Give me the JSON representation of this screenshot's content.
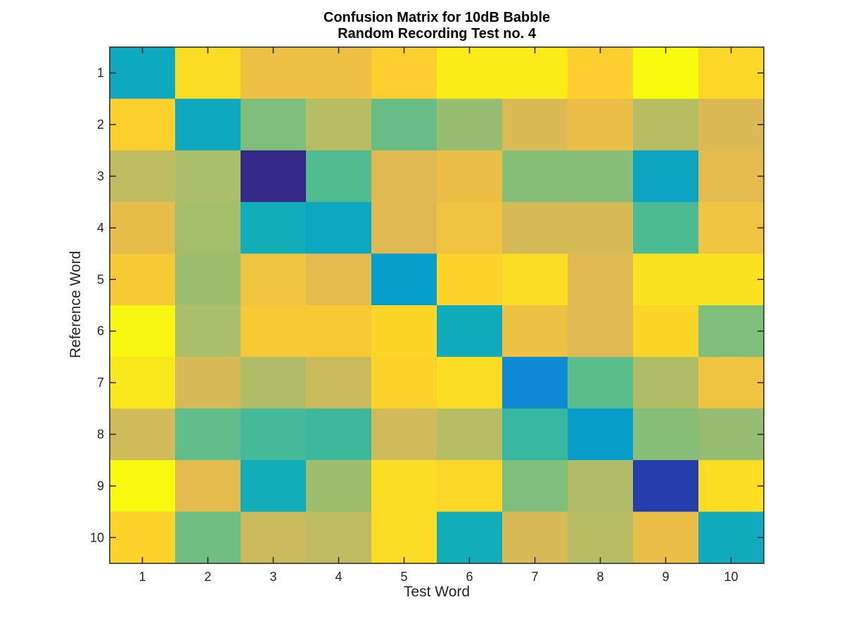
{
  "chart_data": {
    "type": "heatmap",
    "title": [
      "Confusion Matrix for 10dB Babble",
      "Random Recording Test no. 4"
    ],
    "xlabel": "Test Word",
    "ylabel": "Reference Word",
    "x_ticks": [
      "1",
      "2",
      "3",
      "4",
      "5",
      "6",
      "7",
      "8",
      "9",
      "10"
    ],
    "y_ticks": [
      "1",
      "2",
      "3",
      "4",
      "5",
      "6",
      "7",
      "8",
      "9",
      "10"
    ],
    "colormap": "parula",
    "color_range": [
      0,
      1
    ],
    "values": [
      [
        0.36,
        0.86,
        0.74,
        0.74,
        0.8,
        0.93,
        0.93,
        0.8,
        1.0,
        0.84
      ],
      [
        0.81,
        0.36,
        0.55,
        0.63,
        0.52,
        0.58,
        0.69,
        0.73,
        0.63,
        0.69
      ],
      [
        0.64,
        0.61,
        0.0,
        0.49,
        0.7,
        0.73,
        0.56,
        0.56,
        0.34,
        0.71
      ],
      [
        0.72,
        0.6,
        0.38,
        0.35,
        0.7,
        0.75,
        0.68,
        0.68,
        0.48,
        0.75
      ],
      [
        0.78,
        0.59,
        0.75,
        0.71,
        0.31,
        0.82,
        0.86,
        0.7,
        0.89,
        0.89
      ],
      [
        0.98,
        0.61,
        0.78,
        0.78,
        0.83,
        0.37,
        0.74,
        0.7,
        0.83,
        0.55
      ],
      [
        0.91,
        0.68,
        0.62,
        0.66,
        0.82,
        0.86,
        0.24,
        0.5,
        0.62,
        0.75
      ],
      [
        0.67,
        0.51,
        0.47,
        0.46,
        0.67,
        0.63,
        0.45,
        0.31,
        0.56,
        0.58
      ],
      [
        0.99,
        0.71,
        0.38,
        0.59,
        0.87,
        0.84,
        0.55,
        0.62,
        0.04,
        0.87
      ],
      [
        0.82,
        0.53,
        0.66,
        0.64,
        0.86,
        0.38,
        0.68,
        0.63,
        0.73,
        0.37
      ]
    ]
  }
}
